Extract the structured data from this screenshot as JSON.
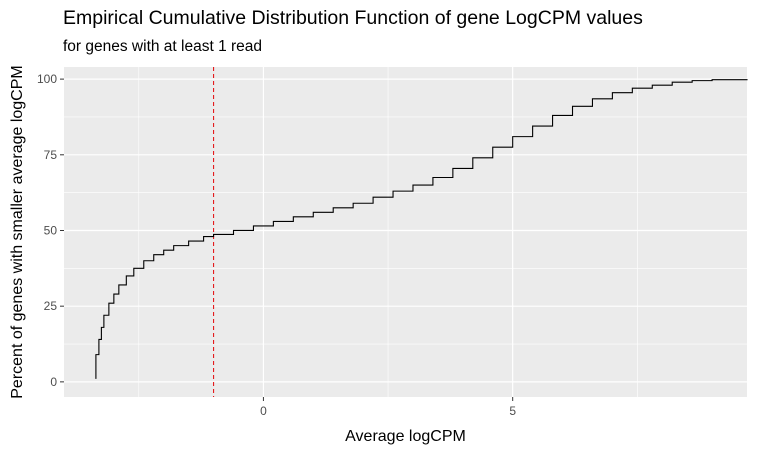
{
  "chart_data": {
    "type": "line",
    "title": "Empirical Cumulative Distribution Function of gene LogCPM values",
    "subtitle": "for genes with at least 1 read",
    "xlabel": "Average logCPM",
    "ylabel": "Percent of genes with smaller average logCPM",
    "xlim": [
      -4.0,
      9.7
    ],
    "ylim": [
      -5,
      104
    ],
    "x_ticks": [
      0,
      5
    ],
    "x_tick_labels": [
      "0",
      "5"
    ],
    "y_ticks": [
      0,
      25,
      50,
      75,
      100
    ],
    "y_tick_labels": [
      "0",
      "25",
      "50",
      "75",
      "100"
    ],
    "grid": true,
    "background": "#ebebeb",
    "grid_color": "#ffffff",
    "line_color": "#000000",
    "series": [
      {
        "step": true,
        "x": [
          -3.36,
          -3.36,
          -3.3,
          -3.25,
          -3.2,
          -3.1,
          -3.0,
          -2.9,
          -2.75,
          -2.6,
          -2.4,
          -2.2,
          -2.0,
          -1.8,
          -1.5,
          -1.2,
          -1.0,
          -0.6,
          -0.2,
          0.2,
          0.6,
          1.0,
          1.4,
          1.8,
          2.2,
          2.6,
          3.0,
          3.4,
          3.8,
          4.2,
          4.6,
          5.0,
          5.4,
          5.8,
          6.2,
          6.6,
          7.0,
          7.4,
          7.8,
          8.2,
          8.6,
          9.0,
          9.7
        ],
        "y": [
          1,
          9,
          14,
          18,
          22,
          26,
          29,
          32,
          35,
          37.5,
          40,
          42,
          43.5,
          45,
          46.5,
          48,
          48.7,
          50,
          51.5,
          53,
          54.5,
          56,
          57.5,
          59,
          61,
          63,
          65,
          67.5,
          70.5,
          74,
          77.5,
          81,
          84.5,
          88,
          91,
          93.5,
          95.5,
          97,
          98,
          99,
          99.5,
          99.8,
          100
        ]
      }
    ],
    "reference_lines": [
      {
        "x": -1,
        "color": "#e41a1c",
        "dash": "dashed"
      }
    ]
  }
}
